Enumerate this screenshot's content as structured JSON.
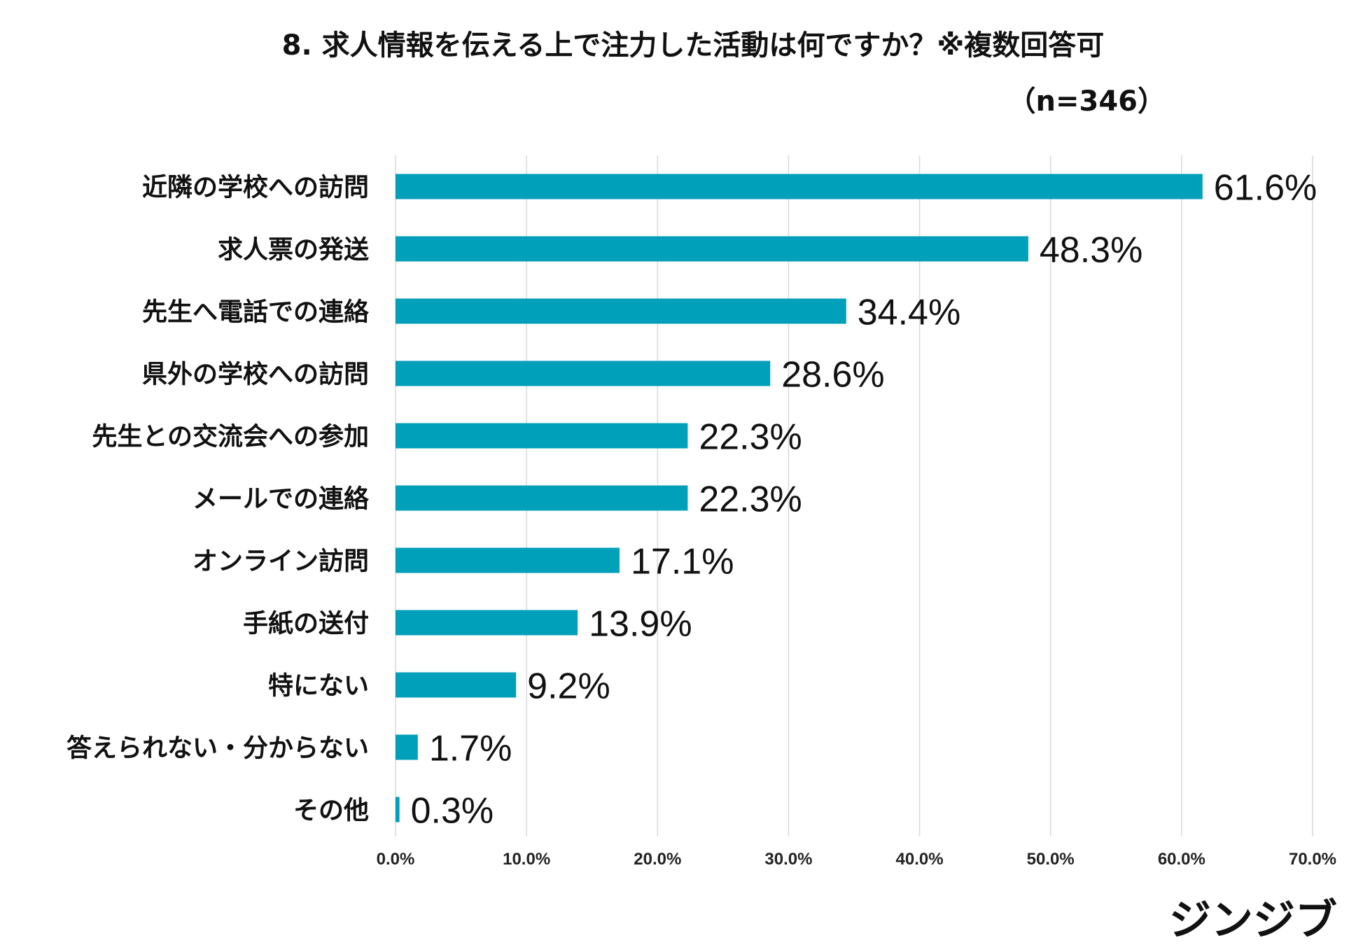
{
  "chart_data": {
    "type": "bar",
    "orientation": "horizontal",
    "title": "8. 求人情報を伝える上で注力した活動は何ですか？※複数回答可",
    "subtitle": "（n=346）",
    "categories": [
      "近隣の学校への訪問",
      "求人票の発送",
      "先生へ電話での連絡",
      "県外の学校への訪問",
      "先生との交流会への参加",
      "メールでの連絡",
      "オンライン訪問",
      "手紙の送付",
      "特にない",
      "答えられない・分からない",
      "その他"
    ],
    "values": [
      61.6,
      48.3,
      34.4,
      28.6,
      22.3,
      22.3,
      17.1,
      13.9,
      9.2,
      1.7,
      0.3
    ],
    "data_labels": [
      "61.6%",
      "48.3%",
      "34.4%",
      "28.6%",
      "22.3%",
      "22.3%",
      "17.1%",
      "13.9%",
      "9.2%",
      "1.7%",
      "0.3%"
    ],
    "xlim": [
      0,
      70
    ],
    "ticks": [
      0,
      10,
      20,
      30,
      40,
      50,
      60,
      70
    ],
    "tick_labels": [
      "0.0%",
      "10.0%",
      "20.0%",
      "30.0%",
      "40.0%",
      "50.0%",
      "60.0%",
      "70.0%"
    ],
    "xlabel": "",
    "ylabel": "",
    "grid": true,
    "bar_color": "#009fba"
  },
  "logo": {
    "text": "ジンジブ"
  }
}
